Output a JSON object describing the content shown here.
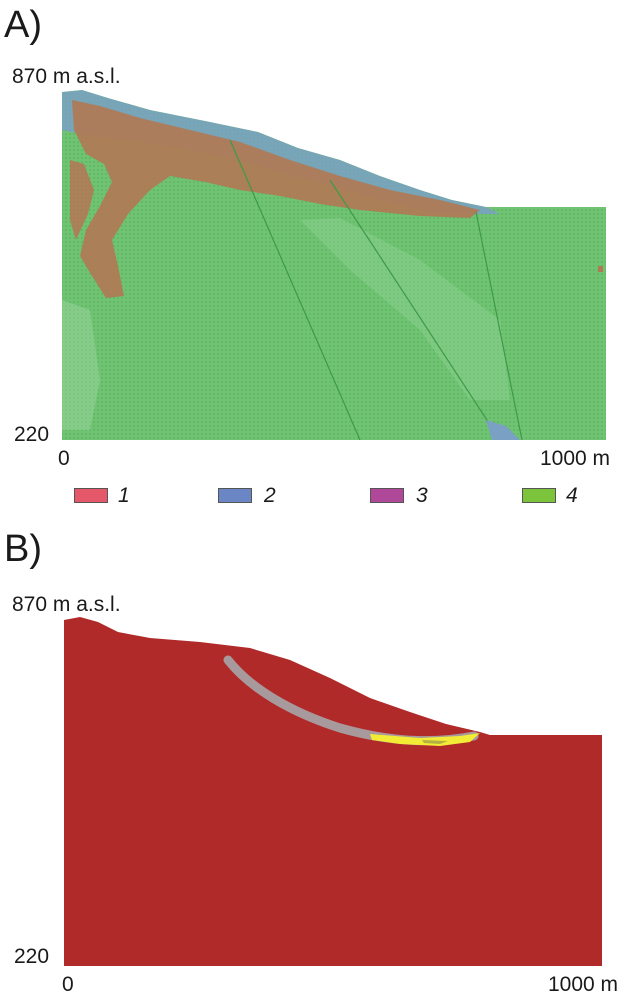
{
  "panel_a": {
    "label": "A)",
    "y_top_label": "870 m a.s.l.",
    "y_bottom_label": "220",
    "x_left_label": "0",
    "x_right_label": "1000 m",
    "legend": [
      {
        "label": "1",
        "color": "#e4586a"
      },
      {
        "label": "2",
        "color": "#6a86c4"
      },
      {
        "label": "3",
        "color": "#b0489a"
      },
      {
        "label": "4",
        "color": "#7cc43c"
      }
    ],
    "colors": {
      "ground": "#6fc372",
      "ground_dark": "#58b45e",
      "zone_brown": "#b07a55",
      "zone_blue": "#7aa0c4",
      "fault": "#3f9a48"
    }
  },
  "panel_b": {
    "label": "B)",
    "y_top_label": "870 m a.s.l.",
    "y_bottom_label": "220",
    "x_left_label": "0",
    "x_right_label": "1000 m",
    "colors": {
      "ground": "#b12a2a",
      "slip_surface": "#a89a9c",
      "slide_zone": "#f2ec36"
    }
  }
}
